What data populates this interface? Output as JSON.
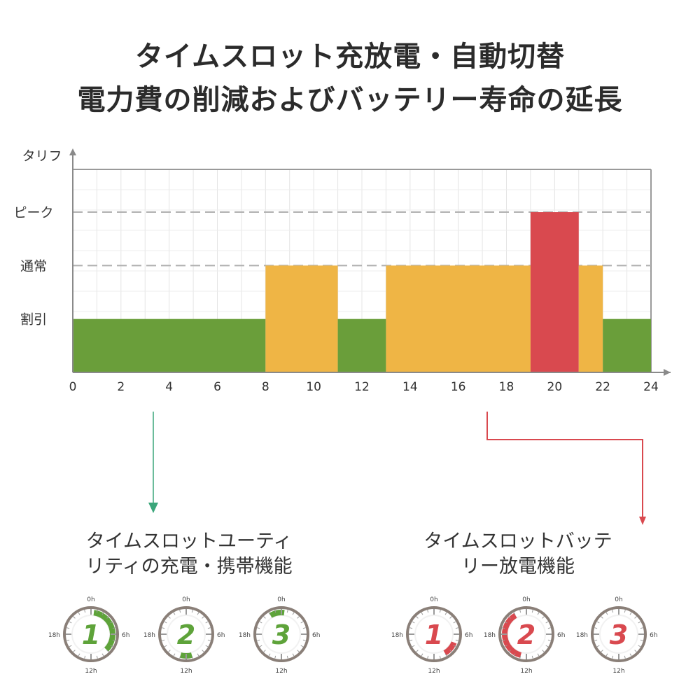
{
  "title": {
    "line1": "タイムスロット充放電・自動切替",
    "line2": "電力費の削減およびバッテリー寿命の延長"
  },
  "chart_data": {
    "type": "bar",
    "ylabel": "タリフ",
    "xlim": [
      0,
      24
    ],
    "x_ticks": [
      0,
      2,
      4,
      6,
      8,
      10,
      12,
      14,
      16,
      18,
      20,
      22,
      24
    ],
    "y_levels": [
      {
        "label": "割引",
        "value": 1
      },
      {
        "label": "通常",
        "value": 2
      },
      {
        "label": "ピーク",
        "value": 3
      }
    ],
    "ylim": [
      0,
      3.8
    ],
    "grid": true,
    "colors": {
      "割引": "#6a9e3a",
      "通常": "#efb545",
      "ピーク": "#d9494f"
    },
    "segments": [
      {
        "start": 0,
        "end": 8,
        "level": "割引"
      },
      {
        "start": 8,
        "end": 11,
        "level": "通常"
      },
      {
        "start": 11,
        "end": 13,
        "level": "割引"
      },
      {
        "start": 13,
        "end": 19,
        "level": "通常"
      },
      {
        "start": 19,
        "end": 21,
        "level": "ピーク"
      },
      {
        "start": 21,
        "end": 22,
        "level": "通常"
      },
      {
        "start": 22,
        "end": 24,
        "level": "割引"
      }
    ]
  },
  "captions": {
    "charge": [
      "タイムスロットユーティ",
      "リティの充電・携帯機能"
    ],
    "discharge": [
      "タイムスロットバッテ",
      "リー放電機能"
    ]
  },
  "clock_labels": [
    "0h",
    "6h",
    "12h",
    "18h"
  ],
  "timers": {
    "charge": [
      {
        "number": "1",
        "arc": [
          0.5,
          9
        ]
      },
      {
        "number": "2",
        "arc": [
          11,
          13
        ]
      },
      {
        "number": "3",
        "arc": [
          22,
          24.5
        ]
      }
    ],
    "discharge": [
      {
        "number": "1",
        "arc": [
          7.5,
          10
        ]
      },
      {
        "number": "2",
        "arc": [
          13,
          22
        ]
      },
      {
        "number": "3",
        "arc": null
      }
    ],
    "charge_color": "#5ea33a",
    "discharge_color": "#d9494f"
  },
  "connectors": {
    "charge_color": "#3aa67a",
    "discharge_color": "#d9494f"
  }
}
